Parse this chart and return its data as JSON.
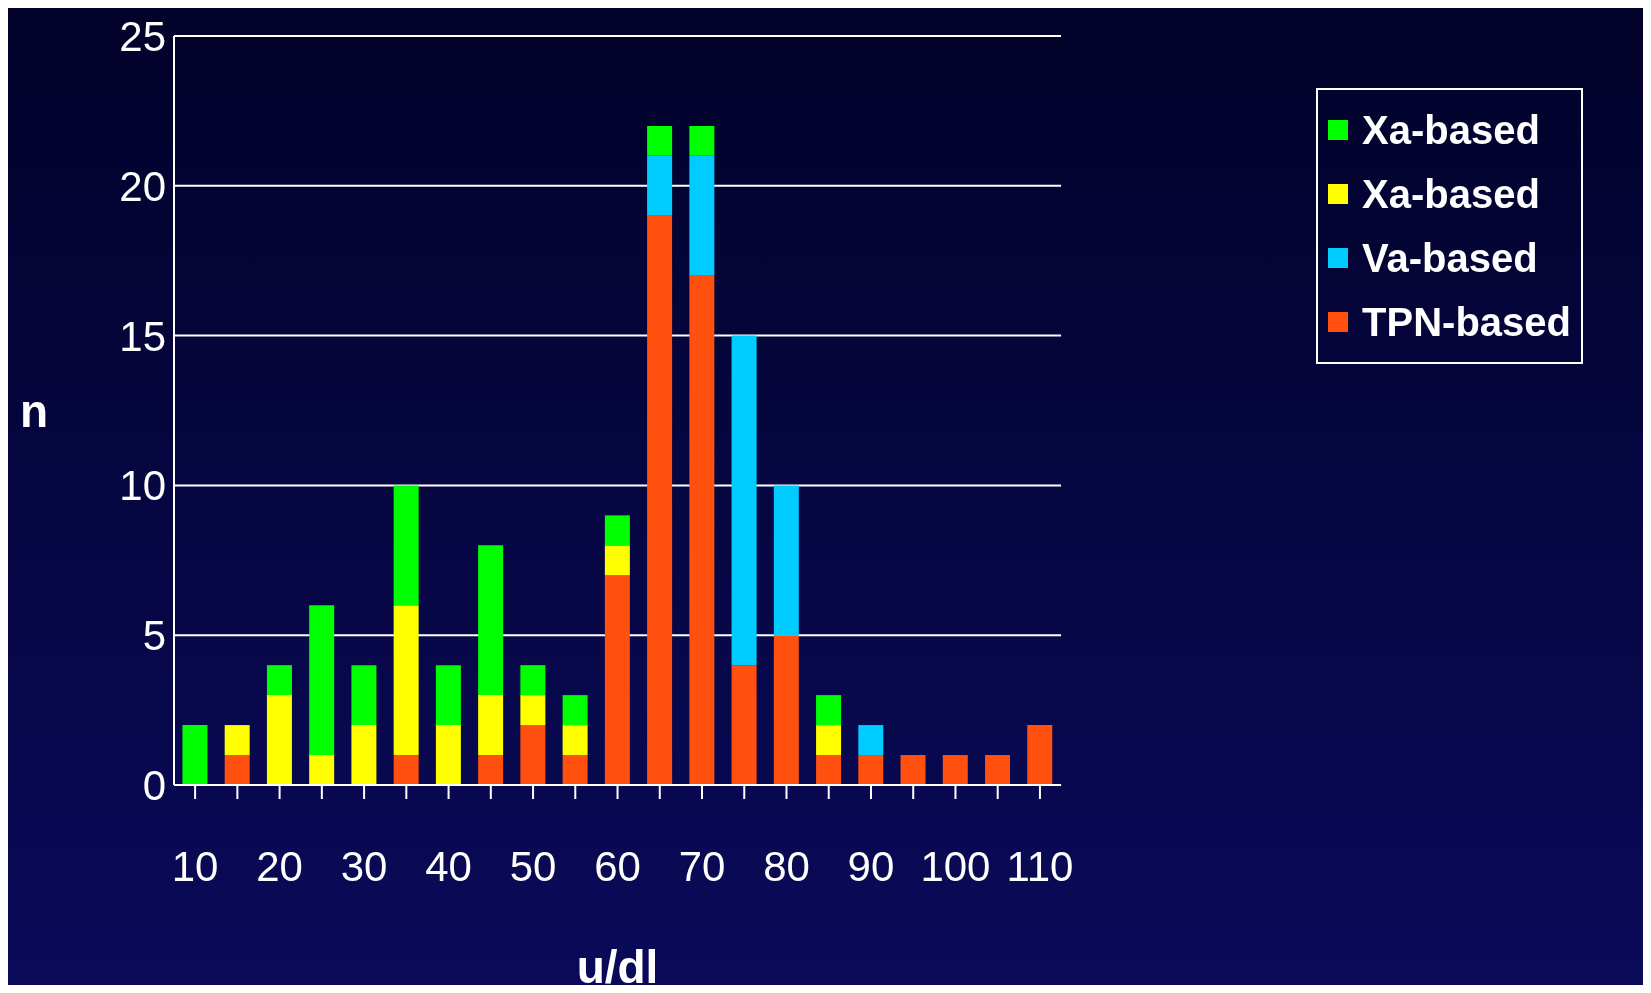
{
  "chart_data": {
    "type": "bar",
    "stacked": true,
    "xlabel": "u/dl",
    "ylabel": "n",
    "categories": [
      "10",
      null,
      "20",
      null,
      "30",
      null,
      "40",
      null,
      "50",
      null,
      "60",
      null,
      "70",
      null,
      "80",
      null,
      "90",
      null,
      "100",
      null,
      "110"
    ],
    "series": [
      {
        "name": "TPN-based",
        "color": "#ff5010",
        "values": [
          0,
          1,
          0,
          0,
          0,
          1,
          0,
          1,
          2,
          1,
          7,
          19,
          17,
          4,
          5,
          1,
          1,
          1,
          1,
          1,
          2
        ]
      },
      {
        "name": "Va-based",
        "color": "#00ccff",
        "values": [
          0,
          0,
          0,
          0,
          0,
          0,
          0,
          0,
          0,
          0,
          0,
          2,
          4,
          11,
          5,
          0,
          1,
          0,
          0,
          0,
          0
        ]
      },
      {
        "name": "Xa-based",
        "color": "#ffff00",
        "values": [
          0,
          1,
          3,
          1,
          2,
          5,
          2,
          2,
          1,
          1,
          1,
          0,
          0,
          0,
          0,
          1,
          0,
          0,
          0,
          0,
          0
        ]
      },
      {
        "name": "Xa-based",
        "color": "#00ff00",
        "values": [
          2,
          0,
          1,
          5,
          2,
          4,
          2,
          5,
          1,
          1,
          1,
          1,
          1,
          0,
          0,
          1,
          0,
          0,
          0,
          0,
          0
        ]
      }
    ],
    "ylim": [
      0,
      25
    ],
    "yticks": [
      0,
      5,
      10,
      15,
      20,
      25
    ],
    "grid": "y",
    "legend": "top right"
  }
}
